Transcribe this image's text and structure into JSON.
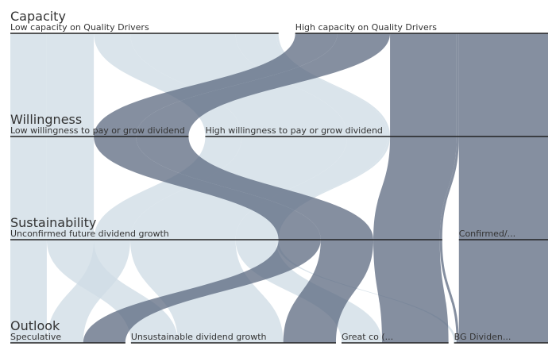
{
  "chart_data": {
    "type": "parallel-sets",
    "levels": [
      {
        "title": "Capacity",
        "nodes": [
          {
            "id": "cap_low",
            "label": "Low capacity on Quality Drivers"
          },
          {
            "id": "cap_high",
            "label": "High capacity on Quality Drivers"
          }
        ]
      },
      {
        "title": "Willingness",
        "nodes": [
          {
            "id": "will_low",
            "label": "Low willingness to pay or grow dividend"
          },
          {
            "id": "will_high",
            "label": "High willingness to pay or grow dividend"
          }
        ]
      },
      {
        "title": "Sustainability",
        "nodes": [
          {
            "id": "sus_unconf",
            "label": "Unconfirmed future dividend growth"
          },
          {
            "id": "sus_conf",
            "label": "Confirmed/..."
          }
        ]
      },
      {
        "title": "Outlook",
        "nodes": [
          {
            "id": "out_spec",
            "label": "Speculative"
          },
          {
            "id": "out_unsus",
            "label": "Unsustainable dividend growth"
          },
          {
            "id": "out_great",
            "label": "Great co (..."
          },
          {
            "id": "out_bg",
            "label": "BG Dividen..."
          }
        ]
      }
    ],
    "paths": [
      {
        "route": [
          "cap_low",
          "will_low",
          "sus_unconf",
          "out_spec"
        ],
        "value": 4.5
      },
      {
        "route": [
          "cap_low",
          "will_low",
          "sus_unconf",
          "out_unsus"
        ],
        "value": 5.8
      },
      {
        "route": [
          "cap_low",
          "will_high",
          "sus_unconf",
          "out_spec"
        ],
        "value": 4.5
      },
      {
        "route": [
          "cap_low",
          "will_high",
          "sus_unconf",
          "out_unsus"
        ],
        "value": 13.0
      },
      {
        "route": [
          "cap_low",
          "will_high",
          "sus_unconf",
          "out_great"
        ],
        "value": 5.0
      },
      {
        "route": [
          "cap_low",
          "will_high",
          "sus_unconf",
          "out_bg"
        ],
        "value": 0.3
      },
      {
        "route": [
          "cap_high",
          "will_low",
          "sus_unconf",
          "out_spec"
        ],
        "value": 5.2
      },
      {
        "route": [
          "cap_high",
          "will_low",
          "sus_unconf",
          "out_unsus"
        ],
        "value": 6.5
      },
      {
        "route": [
          "cap_high",
          "will_high",
          "sus_unconf",
          "out_great"
        ],
        "value": 8.2
      },
      {
        "route": [
          "cap_high",
          "will_high",
          "sus_unconf",
          "out_bg"
        ],
        "value": 0.3
      },
      {
        "route": [
          "cap_high",
          "will_high",
          "sus_conf",
          "out_bg"
        ],
        "value": 11.0
      }
    ],
    "colors": {
      "low_capacity": "#cfdde6",
      "high_capacity": "#56647c"
    }
  }
}
